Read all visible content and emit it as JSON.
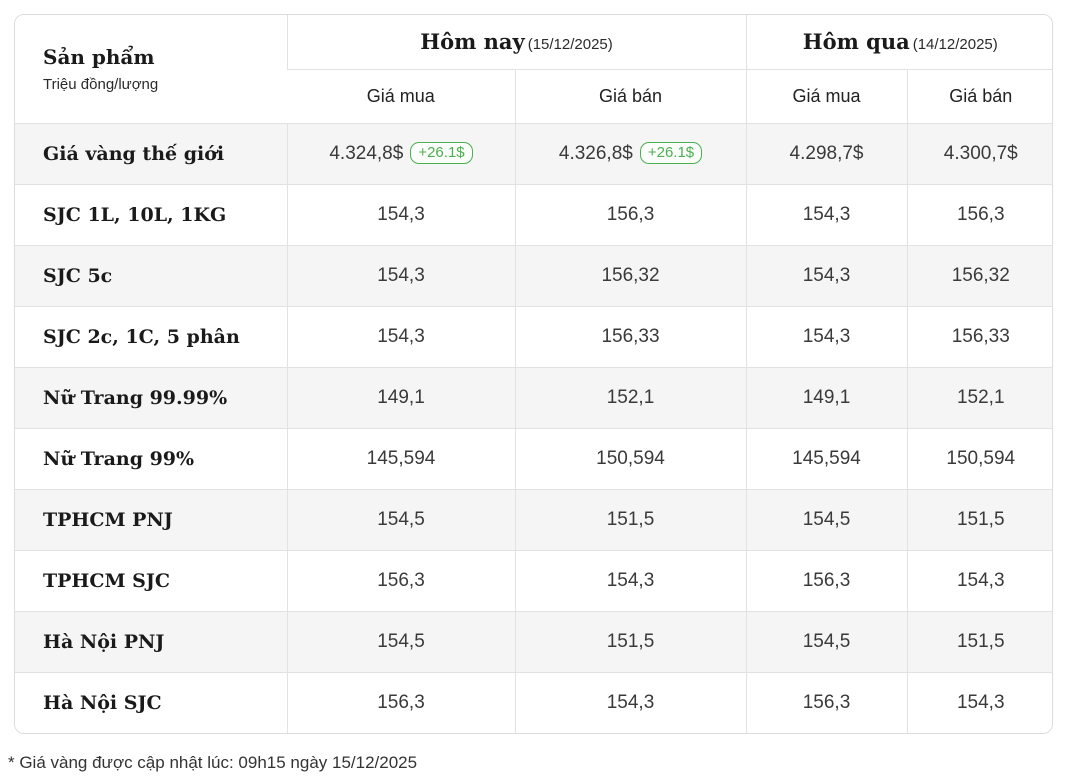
{
  "table": {
    "corner": {
      "title": "Sản phẩm",
      "unit": "Triệu đồng/lượng"
    },
    "groups": [
      {
        "label": "Hôm nay",
        "date": "(15/12/2025)"
      },
      {
        "label": "Hôm qua",
        "date": "(14/12/2025)"
      }
    ],
    "sub_headers": [
      "Giá mua",
      "Giá bán",
      "Giá mua",
      "Giá bán"
    ],
    "rows": [
      {
        "name": "Giá vàng thế giới",
        "cells": [
          "4.324,8$",
          "4.326,8$",
          "4.298,7$",
          "4.300,7$"
        ],
        "badges": [
          "+26.1$",
          "+26.1$",
          "",
          ""
        ]
      },
      {
        "name": "SJC 1L, 10L, 1KG",
        "cells": [
          "154,3",
          "156,3",
          "154,3",
          "156,3"
        ]
      },
      {
        "name": "SJC 5c",
        "cells": [
          "154,3",
          "156,32",
          "154,3",
          "156,32"
        ]
      },
      {
        "name": "SJC 2c, 1C, 5 phân",
        "cells": [
          "154,3",
          "156,33",
          "154,3",
          "156,33"
        ]
      },
      {
        "name": "Nữ Trang 99.99%",
        "cells": [
          "149,1",
          "152,1",
          "149,1",
          "152,1"
        ]
      },
      {
        "name": "Nữ Trang 99%",
        "cells": [
          "145,594",
          "150,594",
          "145,594",
          "150,594"
        ]
      },
      {
        "name": "TPHCM PNJ",
        "cells": [
          "154,5",
          "151,5",
          "154,5",
          "151,5"
        ]
      },
      {
        "name": "TPHCM SJC",
        "cells": [
          "156,3",
          "154,3",
          "156,3",
          "154,3"
        ]
      },
      {
        "name": "Hà Nội PNJ",
        "cells": [
          "154,5",
          "151,5",
          "154,5",
          "151,5"
        ]
      },
      {
        "name": "Hà Nội SJC",
        "cells": [
          "156,3",
          "154,3",
          "156,3",
          "154,3"
        ]
      }
    ]
  },
  "footer": {
    "note": "* Giá vàng được cập nhật lúc: 09h15 ngày 15/12/2025"
  },
  "colors": {
    "badge_green": "#4caf50",
    "stripe_gray": "#f5f5f5",
    "border_gray": "#e2e2e2"
  }
}
